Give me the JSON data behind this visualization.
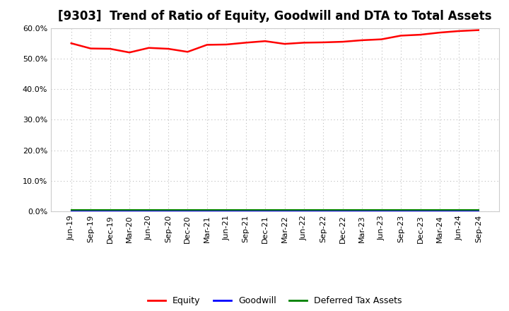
{
  "title": "[9303]  Trend of Ratio of Equity, Goodwill and DTA to Total Assets",
  "x_labels": [
    "Jun-19",
    "Sep-19",
    "Dec-19",
    "Mar-20",
    "Jun-20",
    "Sep-20",
    "Dec-20",
    "Mar-21",
    "Jun-21",
    "Sep-21",
    "Dec-21",
    "Mar-22",
    "Jun-22",
    "Sep-22",
    "Dec-22",
    "Mar-23",
    "Jun-23",
    "Sep-23",
    "Dec-23",
    "Mar-24",
    "Jun-24",
    "Sep-24"
  ],
  "equity": [
    55.0,
    53.3,
    53.2,
    52.0,
    53.5,
    53.2,
    52.2,
    54.5,
    54.6,
    55.2,
    55.7,
    54.8,
    55.2,
    55.3,
    55.5,
    56.0,
    56.3,
    57.5,
    57.8,
    58.5,
    59.0,
    59.3
  ],
  "goodwill": [
    0.0,
    0.0,
    0.0,
    0.0,
    0.0,
    0.0,
    0.0,
    0.0,
    0.0,
    0.0,
    0.0,
    0.0,
    0.0,
    0.0,
    0.0,
    0.0,
    0.0,
    0.0,
    0.0,
    0.0,
    0.0,
    0.0
  ],
  "dta": [
    0.5,
    0.5,
    0.5,
    0.5,
    0.5,
    0.5,
    0.5,
    0.5,
    0.5,
    0.5,
    0.5,
    0.5,
    0.5,
    0.5,
    0.5,
    0.5,
    0.5,
    0.5,
    0.5,
    0.5,
    0.5,
    0.5
  ],
  "equity_color": "#ff0000",
  "goodwill_color": "#0000ff",
  "dta_color": "#008000",
  "ylim": [
    0.0,
    60.0
  ],
  "yticks": [
    0.0,
    10.0,
    20.0,
    30.0,
    40.0,
    50.0,
    60.0
  ],
  "background_color": "#ffffff",
  "plot_bg_color": "#ffffff",
  "grid_color": "#bbbbbb",
  "title_fontsize": 12,
  "tick_fontsize": 8,
  "legend_labels": [
    "Equity",
    "Goodwill",
    "Deferred Tax Assets"
  ]
}
